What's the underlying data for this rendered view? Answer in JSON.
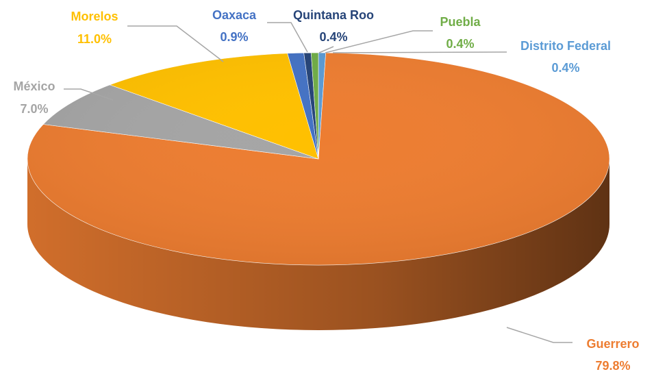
{
  "chart_data": {
    "type": "pie3d",
    "categories": [
      "Distrito Federal",
      "Guerrero",
      "México",
      "Morelos",
      "Oaxaca",
      "Quintana Roo",
      "Puebla"
    ],
    "values": [
      0.4,
      79.8,
      7.0,
      11.0,
      0.9,
      0.4,
      0.4
    ],
    "value_labels": [
      "0.4%",
      "79.8%",
      "7.0%",
      "11.0%",
      "0.9%",
      "0.4%",
      "0.4%"
    ],
    "colors": [
      "#5b9bd5",
      "#ed7d31",
      "#a5a5a5",
      "#ffc000",
      "#4472c4",
      "#264478",
      "#70ad47"
    ]
  }
}
